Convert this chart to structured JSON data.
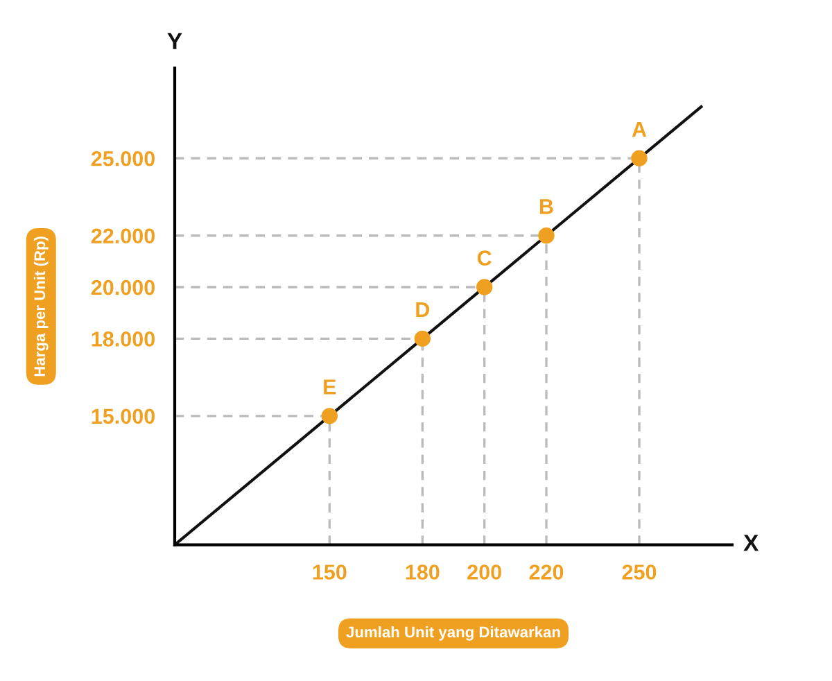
{
  "chart_data": {
    "type": "scatter",
    "xlabel": "Jumlah Unit yang Ditawarkan",
    "ylabel": "Harga per Unit (Rp)",
    "x": [
      150,
      180,
      200,
      220,
      250
    ],
    "series": [
      {
        "type": "line",
        "color": "#111111",
        "x": [
          100,
          270
        ],
        "values": [
          10000,
          27000
        ],
        "marker": "none"
      },
      {
        "type": "scatter",
        "color": "#f0a020",
        "values": [
          15000,
          18000,
          20000,
          22000,
          25000
        ],
        "marker": "circle"
      }
    ],
    "xlim": [
      100,
      280
    ],
    "ylim": [
      10000,
      28500
    ],
    "xticks": [
      150,
      180,
      200,
      220,
      250
    ],
    "yticks": [
      {
        "value": 15000,
        "label": "15.000"
      },
      {
        "value": 18000,
        "label": "18.000"
      },
      {
        "value": 20000,
        "label": "20.000"
      },
      {
        "value": 22000,
        "label": "22.000"
      },
      {
        "value": 25000,
        "label": "25.000"
      }
    ],
    "grid": true,
    "legend": false,
    "annotations": [
      {
        "text": "E",
        "x": 150,
        "y": 15000
      },
      {
        "text": "D",
        "x": 180,
        "y": 18000
      },
      {
        "text": "C",
        "x": 200,
        "y": 20000
      },
      {
        "text": "B",
        "x": 220,
        "y": 22000
      },
      {
        "text": "A",
        "x": 250,
        "y": 25000
      },
      "X",
      "Y"
    ]
  }
}
